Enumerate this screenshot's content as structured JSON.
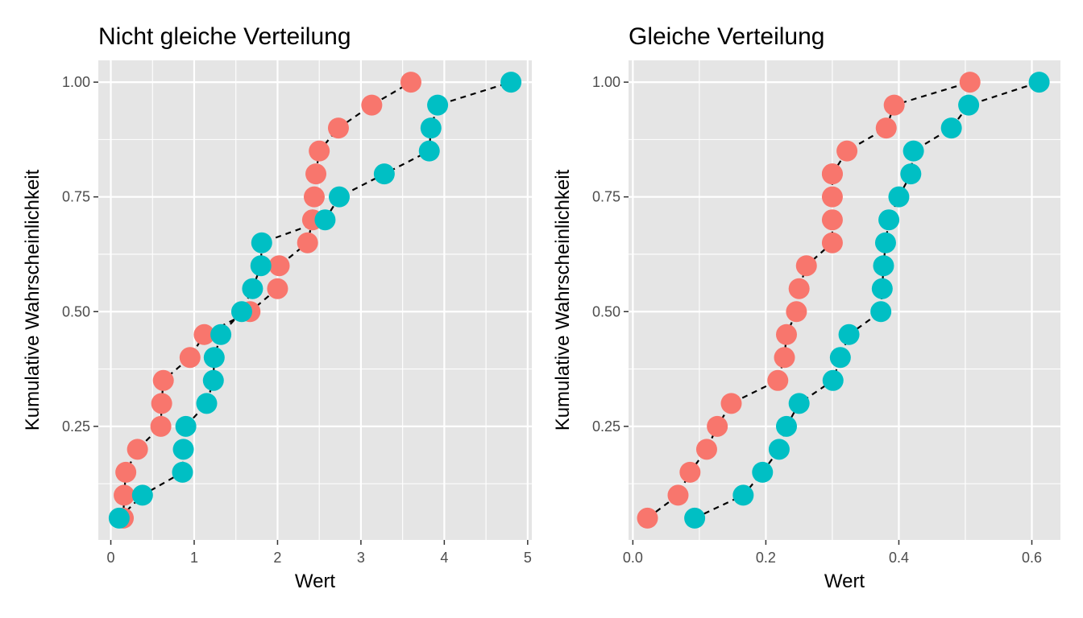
{
  "colors": {
    "panel_background": "#e5e5e5",
    "grid_major": "#ffffff",
    "series_a": "#f8766d",
    "series_b": "#00bfc4",
    "dashed_line": "#000000"
  },
  "chart_data": [
    {
      "type": "scatter",
      "title": "Nicht gleiche Verteilung",
      "xlabel": "Wert",
      "ylabel": "Kumulative Wahrscheinlichkeit",
      "xlim": [
        -0.15,
        5.05
      ],
      "ylim": [
        0.0025,
        1.0475
      ],
      "xticks": [
        0,
        1,
        2,
        3,
        4,
        5
      ],
      "xtick_labels": [
        "0",
        "1",
        "2",
        "3",
        "4",
        "5"
      ],
      "yticks": [
        0.25,
        0.5,
        0.75,
        1.0
      ],
      "ytick_labels": [
        "0.25",
        "0.50",
        "0.75",
        "1.00"
      ],
      "grid": true,
      "legend": "none",
      "series": [
        {
          "color": "#f8766d",
          "x": [
            0.15,
            0.16,
            0.18,
            0.32,
            0.6,
            0.61,
            0.63,
            0.95,
            1.12,
            1.67,
            2.0,
            2.02,
            2.36,
            2.42,
            2.44,
            2.46,
            2.5,
            2.73,
            3.13,
            3.6
          ],
          "y": [
            0.05,
            0.1,
            0.15,
            0.2,
            0.25,
            0.3,
            0.35,
            0.4,
            0.45,
            0.5,
            0.55,
            0.6,
            0.65,
            0.7,
            0.75,
            0.8,
            0.85,
            0.9,
            0.95,
            1.0
          ]
        },
        {
          "color": "#00bfc4",
          "x": [
            0.1,
            0.38,
            0.86,
            0.87,
            0.9,
            1.15,
            1.23,
            1.24,
            1.32,
            1.57,
            1.7,
            1.8,
            1.81,
            2.57,
            2.74,
            3.28,
            3.82,
            3.84,
            3.92,
            4.8
          ],
          "y": [
            0.05,
            0.1,
            0.15,
            0.2,
            0.25,
            0.3,
            0.35,
            0.4,
            0.45,
            0.5,
            0.55,
            0.6,
            0.65,
            0.7,
            0.75,
            0.8,
            0.85,
            0.9,
            0.95,
            1.0
          ]
        }
      ]
    },
    {
      "type": "scatter",
      "title": "Gleiche Verteilung",
      "xlabel": "Wert",
      "ylabel": "Kumulative Wahrscheinlichkeit",
      "xlim": [
        -0.0065,
        0.643
      ],
      "ylim": [
        0.0025,
        1.0475
      ],
      "xticks": [
        0.0,
        0.2,
        0.4,
        0.6
      ],
      "xtick_labels": [
        "0.0",
        "0.2",
        "0.4",
        "0.6"
      ],
      "yticks": [
        0.25,
        0.5,
        0.75,
        1.0
      ],
      "ytick_labels": [
        "0.25",
        "0.50",
        "0.75",
        "1.00"
      ],
      "grid": true,
      "legend": "none",
      "series": [
        {
          "color": "#f8766d",
          "x": [
            0.022,
            0.068,
            0.086,
            0.111,
            0.127,
            0.148,
            0.218,
            0.228,
            0.231,
            0.246,
            0.25,
            0.261,
            0.3,
            0.3,
            0.3,
            0.3,
            0.3,
            0.322,
            0.381,
            0.393,
            0.507
          ],
          "y": [
            0.05,
            0.1,
            0.15,
            0.2,
            0.25,
            0.3,
            0.35,
            0.4,
            0.45,
            0.5,
            0.55,
            0.6,
            0.65,
            0.7,
            0.75,
            0.8,
            0.8,
            0.85,
            0.9,
            0.95,
            1.0
          ]
        },
        {
          "color": "#00bfc4",
          "x": [
            0.093,
            0.166,
            0.195,
            0.22,
            0.231,
            0.25,
            0.301,
            0.312,
            0.325,
            0.373,
            0.375,
            0.377,
            0.38,
            0.385,
            0.4,
            0.418,
            0.422,
            0.479,
            0.505,
            0.611
          ],
          "y": [
            0.05,
            0.1,
            0.15,
            0.2,
            0.25,
            0.3,
            0.35,
            0.4,
            0.45,
            0.5,
            0.55,
            0.6,
            0.65,
            0.7,
            0.75,
            0.8,
            0.85,
            0.9,
            0.95,
            1.0
          ]
        }
      ]
    }
  ]
}
